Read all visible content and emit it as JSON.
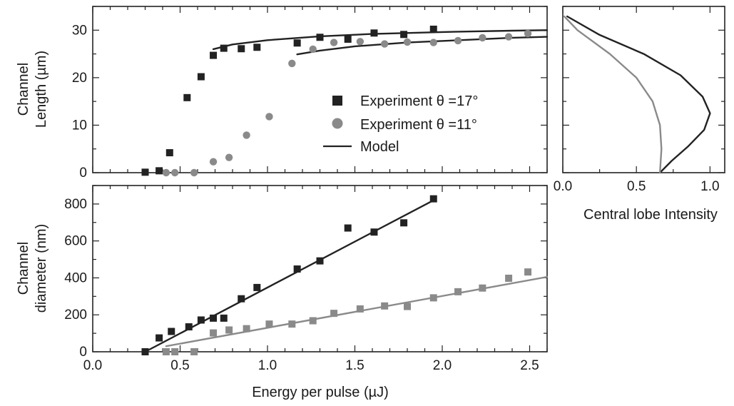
{
  "colors": {
    "dark": "#222222",
    "gray": "#8a8a8a",
    "axis": "#222222"
  },
  "labels": {
    "top_ylabel_line1": "Channel",
    "top_ylabel_line2": "Length (µm)",
    "bottom_ylabel_line1": "Channel",
    "bottom_ylabel_line2": "diameter (nm)",
    "xlabel": "Energy per pulse (µJ)",
    "right_xlabel": "Central lobe Intensity"
  },
  "legend": {
    "exp17": "Experiment θ =17°",
    "exp11": "Experiment θ =11°",
    "model": "Model"
  },
  "chart_data": [
    {
      "type": "scatter",
      "panel": "top-left",
      "xlim": [
        0,
        2.6
      ],
      "ylim": [
        0,
        35
      ],
      "yticks": [
        0,
        10,
        20,
        30
      ],
      "ylabel": "Channel Length (µm)",
      "legend_position": "center-right",
      "series": [
        {
          "name": "Experiment θ =17°",
          "marker": "square",
          "color": "#222222",
          "points": [
            [
              0.3,
              0.1
            ],
            [
              0.38,
              0.4
            ],
            [
              0.44,
              4.2
            ],
            [
              0.54,
              15.8
            ],
            [
              0.62,
              20.2
            ],
            [
              0.69,
              24.7
            ],
            [
              0.75,
              26.2
            ],
            [
              0.85,
              26.1
            ],
            [
              0.94,
              26.4
            ],
            [
              1.17,
              27.3
            ],
            [
              1.3,
              28.5
            ],
            [
              1.46,
              28.1
            ],
            [
              1.61,
              29.4
            ],
            [
              1.78,
              29.1
            ],
            [
              1.95,
              30.2
            ]
          ]
        },
        {
          "name": "Experiment θ =11°",
          "marker": "circle",
          "color": "#8a8a8a",
          "points": [
            [
              0.42,
              0.0
            ],
            [
              0.47,
              0.0
            ],
            [
              0.58,
              0.0
            ],
            [
              0.69,
              2.3
            ],
            [
              0.78,
              3.2
            ],
            [
              0.88,
              7.9
            ],
            [
              1.01,
              11.8
            ],
            [
              1.14,
              23.0
            ],
            [
              1.26,
              26.0
            ],
            [
              1.38,
              27.4
            ],
            [
              1.53,
              27.6
            ],
            [
              1.67,
              27.1
            ],
            [
              1.8,
              27.5
            ],
            [
              1.95,
              27.4
            ],
            [
              2.09,
              27.8
            ],
            [
              2.23,
              28.4
            ],
            [
              2.38,
              28.6
            ],
            [
              2.49,
              29.3
            ]
          ]
        },
        {
          "name": "Model",
          "type": "line",
          "color": "#222222",
          "points": [
            [
              0.69,
              26.0
            ],
            [
              0.8,
              27.0
            ],
            [
              1.0,
              27.9
            ],
            [
              1.3,
              28.7
            ],
            [
              1.6,
              29.2
            ],
            [
              2.0,
              29.6
            ],
            [
              2.4,
              29.9
            ],
            [
              2.6,
              30.0
            ]
          ]
        },
        {
          "name": "",
          "type": "line",
          "color": "#222222",
          "points": [
            [
              1.17,
              24.9
            ],
            [
              1.3,
              25.7
            ],
            [
              1.5,
              26.6
            ],
            [
              1.8,
              27.4
            ],
            [
              2.1,
              27.9
            ],
            [
              2.4,
              28.4
            ],
            [
              2.6,
              28.6
            ]
          ]
        }
      ]
    },
    {
      "type": "scatter",
      "panel": "bottom-left",
      "xlim": [
        0,
        2.6
      ],
      "ylim": [
        0,
        900
      ],
      "xticks": [
        0.0,
        0.5,
        1.0,
        1.5,
        2.0,
        2.5
      ],
      "xticklabels": [
        "0.0",
        "0.5",
        "1.0",
        "1.5",
        "2.0",
        "2.5"
      ],
      "yticks": [
        0,
        200,
        400,
        600,
        800
      ],
      "xlabel": "Energy per pulse (µJ)",
      "ylabel": "Channel diameter (nm)",
      "series": [
        {
          "name": "Experiment θ =17°",
          "marker": "square",
          "color": "#222222",
          "points": [
            [
              0.3,
              0
            ],
            [
              0.38,
              75
            ],
            [
              0.45,
              110
            ],
            [
              0.55,
              135
            ],
            [
              0.62,
              172
            ],
            [
              0.69,
              182
            ],
            [
              0.75,
              182
            ],
            [
              0.85,
              287
            ],
            [
              0.94,
              348
            ],
            [
              1.17,
              448
            ],
            [
              1.3,
              492
            ],
            [
              1.46,
              670
            ],
            [
              1.61,
              648
            ],
            [
              1.78,
              698
            ],
            [
              1.95,
              828
            ]
          ]
        },
        {
          "name": "Experiment θ =11°",
          "marker": "square",
          "color": "#8a8a8a",
          "points": [
            [
              0.42,
              0
            ],
            [
              0.47,
              0
            ],
            [
              0.58,
              0
            ],
            [
              0.69,
              102
            ],
            [
              0.78,
              118
            ],
            [
              0.88,
              125
            ],
            [
              1.01,
              150
            ],
            [
              1.14,
              150
            ],
            [
              1.26,
              168
            ],
            [
              1.38,
              208
            ],
            [
              1.53,
              232
            ],
            [
              1.67,
              248
            ],
            [
              1.8,
              245
            ],
            [
              1.95,
              292
            ],
            [
              2.09,
              325
            ],
            [
              2.23,
              345
            ],
            [
              2.38,
              398
            ],
            [
              2.49,
              432
            ]
          ]
        },
        {
          "name": "",
          "type": "line",
          "color": "#222222",
          "points": [
            [
              0.3,
              0
            ],
            [
              1.96,
              825
            ]
          ]
        },
        {
          "name": "",
          "type": "line",
          "color": "#8a8a8a",
          "points": [
            [
              0.42,
              30
            ],
            [
              2.6,
              405
            ]
          ]
        }
      ]
    },
    {
      "type": "line",
      "panel": "top-right",
      "xlim": [
        0,
        1.1
      ],
      "ylim": [
        0,
        35
      ],
      "xticks": [
        0.0,
        0.5,
        1.0
      ],
      "xticklabels": [
        "0.0",
        "0.5",
        "1.0"
      ],
      "xlabel": "Central lobe Intensity",
      "series": [
        {
          "name": "",
          "color": "#222222",
          "points": [
            [
              0.03,
              32.9
            ],
            [
              0.25,
              29.0
            ],
            [
              0.55,
              25.0
            ],
            [
              0.8,
              20.5
            ],
            [
              0.95,
              16.0
            ],
            [
              1.0,
              12.5
            ],
            [
              0.96,
              9.0
            ],
            [
              0.85,
              5.5
            ],
            [
              0.74,
              2.5
            ],
            [
              0.66,
              0.0
            ]
          ]
        },
        {
          "name": "",
          "color": "#8a8a8a",
          "points": [
            [
              0.01,
              32.9
            ],
            [
              0.1,
              30.0
            ],
            [
              0.32,
              25.0
            ],
            [
              0.5,
              20.0
            ],
            [
              0.61,
              15.0
            ],
            [
              0.66,
              10.0
            ],
            [
              0.67,
              5.0
            ],
            [
              0.66,
              0.0
            ]
          ]
        }
      ]
    }
  ]
}
